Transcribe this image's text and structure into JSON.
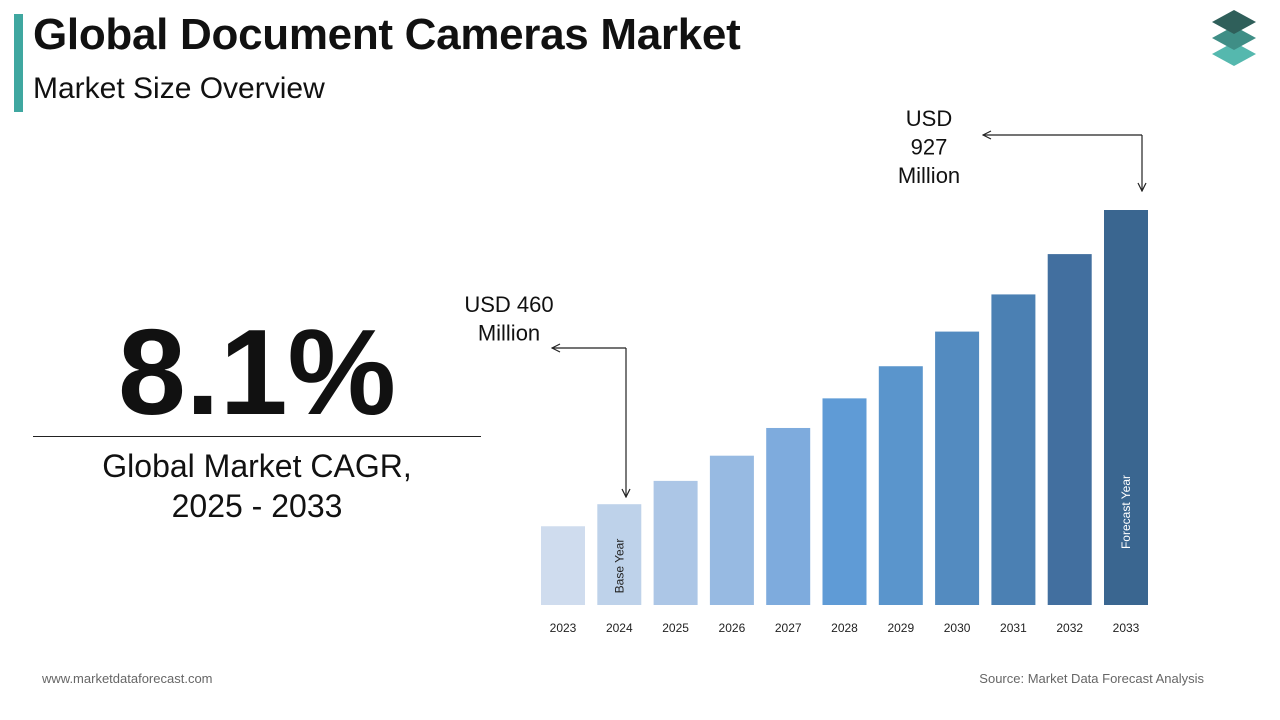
{
  "header": {
    "title": "Global Document Cameras Market",
    "subtitle": "Market Size Overview"
  },
  "logo": {
    "icon": "layered-stack-icon"
  },
  "cagr": {
    "value": "8.1%",
    "label_line1": "Global Market CAGR,",
    "label_line2": "2025 - 2033"
  },
  "colors": {
    "accent": "#3fa7a0",
    "logo_top": "#2f5f5a",
    "logo_mid": "#3f8e86",
    "logo_bottom": "#55b8ae",
    "arrow": "#222222",
    "bars": [
      "#cfdcee",
      "#bed2ea",
      "#acc6e6",
      "#97bae2",
      "#7eabdd",
      "#5f9bd6",
      "#5a95cc",
      "#538bc0",
      "#4b80b3",
      "#426f9f",
      "#3a6690"
    ]
  },
  "chart_data": {
    "type": "bar",
    "categories": [
      "2023",
      "2024",
      "2025",
      "2026",
      "2027",
      "2028",
      "2029",
      "2030",
      "2031",
      "2032",
      "2033"
    ],
    "values": [
      425,
      460,
      497,
      537,
      581,
      628,
      679,
      734,
      793,
      857,
      927
    ],
    "unit": "USD Million",
    "ylim": [
      300,
      927
    ],
    "bar_labels": {
      "2024": "Base Year",
      "2033": "Forecast Year"
    },
    "callouts": [
      {
        "category": "2024",
        "lines": [
          "USD 460",
          "Million"
        ]
      },
      {
        "category": "2033",
        "lines": [
          "USD",
          "927",
          "Million"
        ]
      }
    ],
    "grid": false
  },
  "footer": {
    "website": "www.marketdataforecast.com",
    "source": "Source: Market Data Forecast Analysis"
  }
}
